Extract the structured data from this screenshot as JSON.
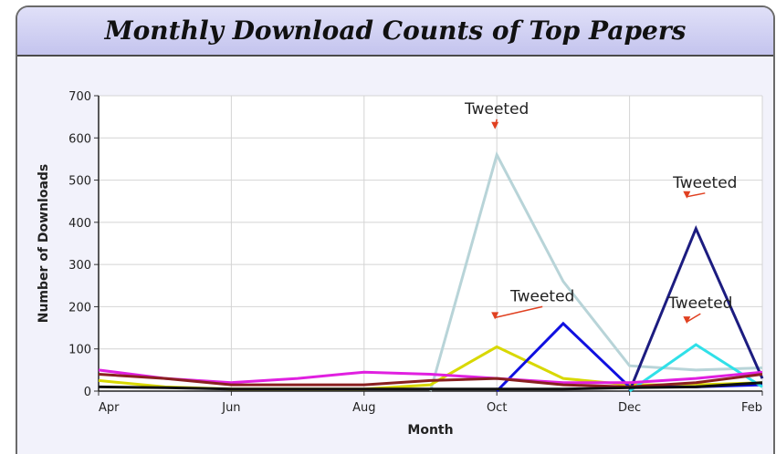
{
  "chart_data": {
    "type": "line",
    "title": "Monthly Download Counts of Top Papers",
    "xlabel": "Month",
    "ylabel": "Number of Downloads",
    "ylim": [
      0,
      700
    ],
    "yticks": [
      0,
      100,
      200,
      300,
      400,
      500,
      600,
      700
    ],
    "xtick_labels": [
      "Apr",
      "Jun",
      "Aug",
      "Oct",
      "Dec",
      "Feb"
    ],
    "x": [
      "Apr",
      "May",
      "Jun",
      "Jul",
      "Aug",
      "Sep",
      "Oct",
      "Nov",
      "Dec",
      "Jan",
      "Feb"
    ],
    "grid": true,
    "series": [
      {
        "color": "#b8d4d8",
        "values": [
          null,
          null,
          null,
          null,
          null,
          0,
          560,
          260,
          60,
          50,
          55
        ]
      },
      {
        "color": "#d8d800",
        "values": [
          25,
          10,
          5,
          5,
          5,
          15,
          105,
          30,
          15,
          15,
          20
        ]
      },
      {
        "color": "#1010e0",
        "values": [
          null,
          null,
          null,
          null,
          null,
          null,
          0,
          160,
          10,
          10,
          15
        ]
      },
      {
        "color": "#1c1c80",
        "values": [
          null,
          null,
          null,
          null,
          null,
          null,
          null,
          null,
          0,
          385,
          30
        ]
      },
      {
        "color": "#30e0e8",
        "values": [
          null,
          null,
          null,
          null,
          null,
          null,
          null,
          null,
          0,
          110,
          10
        ]
      },
      {
        "color": "#e020e0",
        "values": [
          50,
          30,
          20,
          30,
          45,
          40,
          30,
          20,
          20,
          30,
          45
        ]
      },
      {
        "color": "#8a2020",
        "values": [
          40,
          30,
          15,
          15,
          15,
          25,
          30,
          15,
          10,
          20,
          40
        ]
      },
      {
        "color": "#101010",
        "values": [
          10,
          8,
          5,
          5,
          5,
          5,
          5,
          5,
          8,
          10,
          20
        ]
      }
    ],
    "annotations": [
      {
        "text": "Tweeted",
        "x": "Oct",
        "y": 560
      },
      {
        "text": "Tweeted",
        "x": "Oct",
        "y": 105
      },
      {
        "text": "Tweeted",
        "x": "Jan",
        "y": 385
      },
      {
        "text": "Tweeted",
        "x": "Jan",
        "y": 110
      }
    ]
  }
}
